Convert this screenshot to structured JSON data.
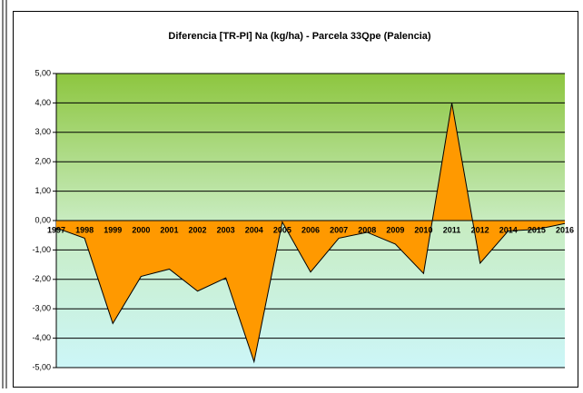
{
  "chart_data": {
    "type": "area",
    "title": "Diferencia [TR-PI] Na (kg/ha) - Parcela 33Qpe (Palencia)",
    "categories": [
      "1997",
      "1998",
      "1999",
      "2000",
      "2001",
      "2002",
      "2003",
      "2004",
      "2005",
      "2006",
      "2007",
      "2008",
      "2009",
      "2010",
      "2011",
      "2012",
      "2014",
      "2015",
      "2016"
    ],
    "series": [
      {
        "name": "Diferencia",
        "color": "#ff9900",
        "values": [
          -0.25,
          -0.6,
          -3.5,
          -1.9,
          -1.65,
          -2.4,
          -1.95,
          -4.8,
          -0.05,
          -1.75,
          -0.6,
          -0.4,
          -0.8,
          -1.8,
          4.0,
          -1.45,
          -0.35,
          -0.3,
          -0.1
        ]
      }
    ],
    "ylim": [
      -5,
      5
    ],
    "yticks": [
      {
        "value": -5,
        "label": "-5,00"
      },
      {
        "value": -4,
        "label": "-4,00"
      },
      {
        "value": -3,
        "label": "-3,00"
      },
      {
        "value": -2,
        "label": "-2,00"
      },
      {
        "value": -1,
        "label": "-1,00"
      },
      {
        "value": 0,
        "label": "0,00"
      },
      {
        "value": 1,
        "label": "1,00"
      },
      {
        "value": 2,
        "label": "2,00"
      },
      {
        "value": 3,
        "label": "3,00"
      },
      {
        "value": 4,
        "label": "4,00"
      },
      {
        "value": 5,
        "label": "5,00"
      }
    ],
    "grid": true
  }
}
